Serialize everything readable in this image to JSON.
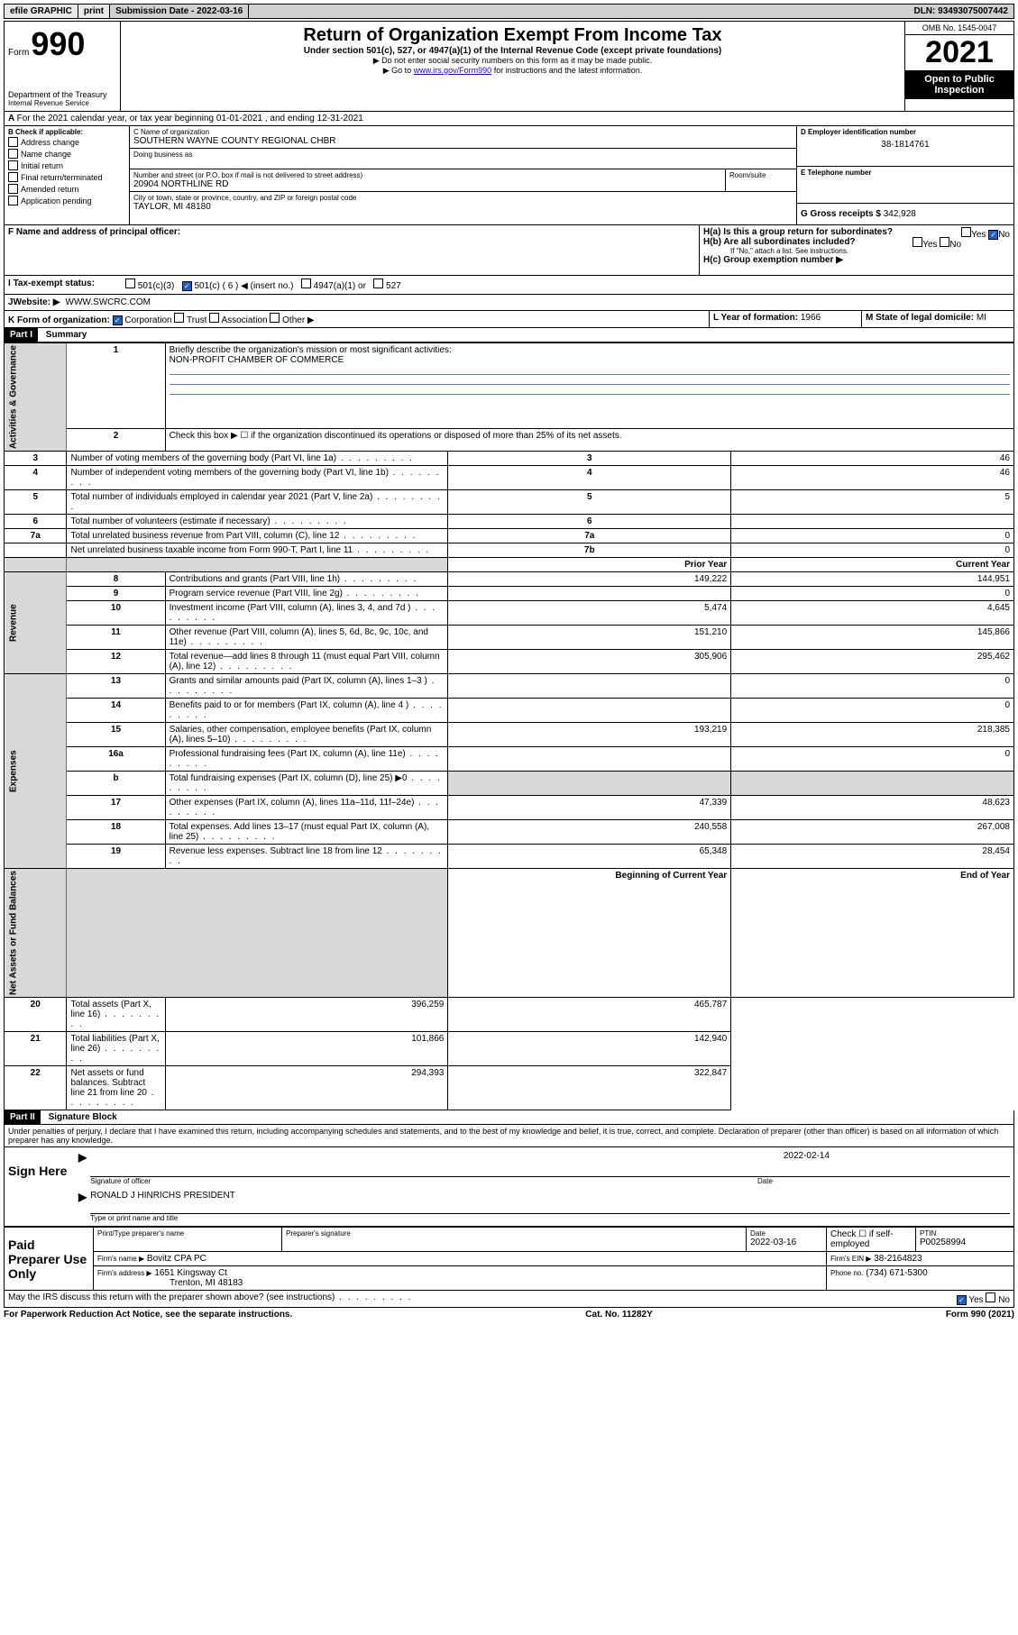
{
  "topbar": {
    "efile": "efile GRAPHIC",
    "print": "print",
    "subdate_label": "Submission Date - 2022-03-16",
    "dln": "DLN: 93493075007442"
  },
  "header": {
    "form_prefix": "Form",
    "form_num": "990",
    "dept": "Department of the Treasury",
    "irs": "Internal Revenue Service",
    "title": "Return of Organization Exempt From Income Tax",
    "sub1": "Under section 501(c), 527, or 4947(a)(1) of the Internal Revenue Code (except private foundations)",
    "sub2": "▶ Do not enter social security numbers on this form as it may be made public.",
    "sub3_pre": "▶ Go to ",
    "sub3_link": "www.irs.gov/Form990",
    "sub3_post": " for instructions and the latest information.",
    "omb": "OMB No. 1545-0047",
    "year": "2021",
    "open": "Open to Public Inspection"
  },
  "lineA": {
    "text": "For the 2021 calendar year, or tax year beginning 01-01-2021    , and ending 12-31-2021"
  },
  "B": {
    "label": "B Check if applicable:",
    "items": [
      "Address change",
      "Name change",
      "Initial return",
      "Final return/terminated",
      "Amended return",
      "Application pending"
    ]
  },
  "C": {
    "name_label": "C Name of organization",
    "name": "SOUTHERN WAYNE COUNTY REGIONAL CHBR",
    "dba_label": "Doing business as",
    "addr_label": "Number and street (or P.O. box if mail is not delivered to street address)",
    "room_label": "Room/suite",
    "addr": "20904 NORTHLINE RD",
    "city_label": "City or town, state or province, country, and ZIP or foreign postal code",
    "city": "TAYLOR, MI  48180"
  },
  "D": {
    "label": "D Employer identification number",
    "value": "38-1814761"
  },
  "E": {
    "label": "E Telephone number",
    "value": ""
  },
  "F": {
    "label": "F  Name and address of principal officer:",
    "value": ""
  },
  "G": {
    "label": "G Gross receipts $",
    "value": "342,928"
  },
  "H": {
    "a_label": "H(a)  Is this a group return for subordinates?",
    "b_label": "H(b)  Are all subordinates included?",
    "b_note": "If \"No,\" attach a list. See instructions.",
    "c_label": "H(c)  Group exemption number ▶",
    "yes": "Yes",
    "no": "No"
  },
  "I": {
    "label": "Tax-exempt status:",
    "opts": [
      "501(c)(3)",
      "501(c) ( 6 ) ◀ (insert no.)",
      "4947(a)(1) or",
      "527"
    ]
  },
  "J": {
    "label": "Website: ▶",
    "value": "WWW.SWCRC.COM"
  },
  "K": {
    "label": "K Form of organization:",
    "opts": [
      "Corporation",
      "Trust",
      "Association",
      "Other ▶"
    ]
  },
  "L": {
    "label": "L Year of formation:",
    "value": "1966"
  },
  "M": {
    "label": "M State of legal domicile:",
    "value": "MI"
  },
  "part1": {
    "tag": "Part I",
    "title": "Summary",
    "q1": "Briefly describe the organization's mission or most significant activities:",
    "q1v": "NON-PROFIT CHAMBER OF COMMERCE",
    "q2": "Check this box ▶ ☐  if the organization discontinued its operations or disposed of more than 25% of its net assets.",
    "rows_top": [
      {
        "n": "3",
        "t": "Number of voting members of the governing body (Part VI, line 1a)",
        "k": "3",
        "v": "46"
      },
      {
        "n": "4",
        "t": "Number of independent voting members of the governing body (Part VI, line 1b)",
        "k": "4",
        "v": "46"
      },
      {
        "n": "5",
        "t": "Total number of individuals employed in calendar year 2021 (Part V, line 2a)",
        "k": "5",
        "v": "5"
      },
      {
        "n": "6",
        "t": "Total number of volunteers (estimate if necessary)",
        "k": "6",
        "v": ""
      },
      {
        "n": "7a",
        "t": "Total unrelated business revenue from Part VIII, column (C), line 12",
        "k": "7a",
        "v": "0"
      },
      {
        "n": "",
        "t": "Net unrelated business taxable income from Form 990-T, Part I, line 11",
        "k": "7b",
        "v": "0"
      }
    ],
    "col_prior": "Prior Year",
    "col_current": "Current Year",
    "revenue": [
      {
        "n": "8",
        "t": "Contributions and grants (Part VIII, line 1h)",
        "p": "149,222",
        "c": "144,951"
      },
      {
        "n": "9",
        "t": "Program service revenue (Part VIII, line 2g)",
        "p": "",
        "c": "0"
      },
      {
        "n": "10",
        "t": "Investment income (Part VIII, column (A), lines 3, 4, and 7d )",
        "p": "5,474",
        "c": "4,645"
      },
      {
        "n": "11",
        "t": "Other revenue (Part VIII, column (A), lines 5, 6d, 8c, 9c, 10c, and 11e)",
        "p": "151,210",
        "c": "145,866"
      },
      {
        "n": "12",
        "t": "Total revenue—add lines 8 through 11 (must equal Part VIII, column (A), line 12)",
        "p": "305,906",
        "c": "295,462"
      }
    ],
    "expenses": [
      {
        "n": "13",
        "t": "Grants and similar amounts paid (Part IX, column (A), lines 1–3 )",
        "p": "",
        "c": "0"
      },
      {
        "n": "14",
        "t": "Benefits paid to or for members (Part IX, column (A), line 4 )",
        "p": "",
        "c": "0"
      },
      {
        "n": "15",
        "t": "Salaries, other compensation, employee benefits (Part IX, column (A), lines 5–10)",
        "p": "193,219",
        "c": "218,385"
      },
      {
        "n": "16a",
        "t": "Professional fundraising fees (Part IX, column (A), line 11e)",
        "p": "",
        "c": "0"
      },
      {
        "n": "b",
        "t": "Total fundraising expenses (Part IX, column (D), line 25) ▶0",
        "p": "__SHADE__",
        "c": "__SHADE__"
      },
      {
        "n": "17",
        "t": "Other expenses (Part IX, column (A), lines 11a–11d, 11f–24e)",
        "p": "47,339",
        "c": "48,623"
      },
      {
        "n": "18",
        "t": "Total expenses. Add lines 13–17 (must equal Part IX, column (A), line 25)",
        "p": "240,558",
        "c": "267,008"
      },
      {
        "n": "19",
        "t": "Revenue less expenses. Subtract line 18 from line 12",
        "p": "65,348",
        "c": "28,454"
      }
    ],
    "col_begin": "Beginning of Current Year",
    "col_end": "End of Year",
    "netassets": [
      {
        "n": "20",
        "t": "Total assets (Part X, line 16)",
        "p": "396,259",
        "c": "465,787"
      },
      {
        "n": "21",
        "t": "Total liabilities (Part X, line 26)",
        "p": "101,866",
        "c": "142,940"
      },
      {
        "n": "22",
        "t": "Net assets or fund balances. Subtract line 21 from line 20",
        "p": "294,393",
        "c": "322,847"
      }
    ],
    "vlabels": {
      "gov": "Activities & Governance",
      "rev": "Revenue",
      "exp": "Expenses",
      "net": "Net Assets or Fund Balances"
    }
  },
  "part2": {
    "tag": "Part II",
    "title": "Signature Block",
    "penalty": "Under penalties of perjury, I declare that I have examined this return, including accompanying schedules and statements, and to the best of my knowledge and belief, it is true, correct, and complete. Declaration of preparer (other than officer) is based on all information of which preparer has any knowledge.",
    "sign_here": "Sign Here",
    "sig_officer": "Signature of officer",
    "sig_date": "Date",
    "sig_date_v": "2022-02-14",
    "officer_name": "RONALD J HINRICHS PRESIDENT",
    "type_name": "Type or print name and title",
    "paid": "Paid Preparer Use Only",
    "pp_name": "Print/Type preparer's name",
    "pp_sig": "Preparer's signature",
    "pp_date": "Date",
    "pp_date_v": "2022-03-16",
    "pp_check": "Check ☐ if self-employed",
    "ptin_l": "PTIN",
    "ptin": "P00258994",
    "firm_name_l": "Firm's name      ▶",
    "firm_name": "Bovitz CPA PC",
    "firm_ein_l": "Firm's EIN ▶",
    "firm_ein": "38-2164823",
    "firm_addr_l": "Firm's address ▶",
    "firm_addr1": "1651 Kingsway Ct",
    "firm_addr2": "Trenton, MI  48183",
    "phone_l": "Phone no.",
    "phone": "(734) 671-5300",
    "may_irs": "May the IRS discuss this return with the preparer shown above? (see instructions)"
  },
  "footer": {
    "pra": "For Paperwork Reduction Act Notice, see the separate instructions.",
    "cat": "Cat. No. 11282Y",
    "form": "Form 990 (2021)"
  }
}
